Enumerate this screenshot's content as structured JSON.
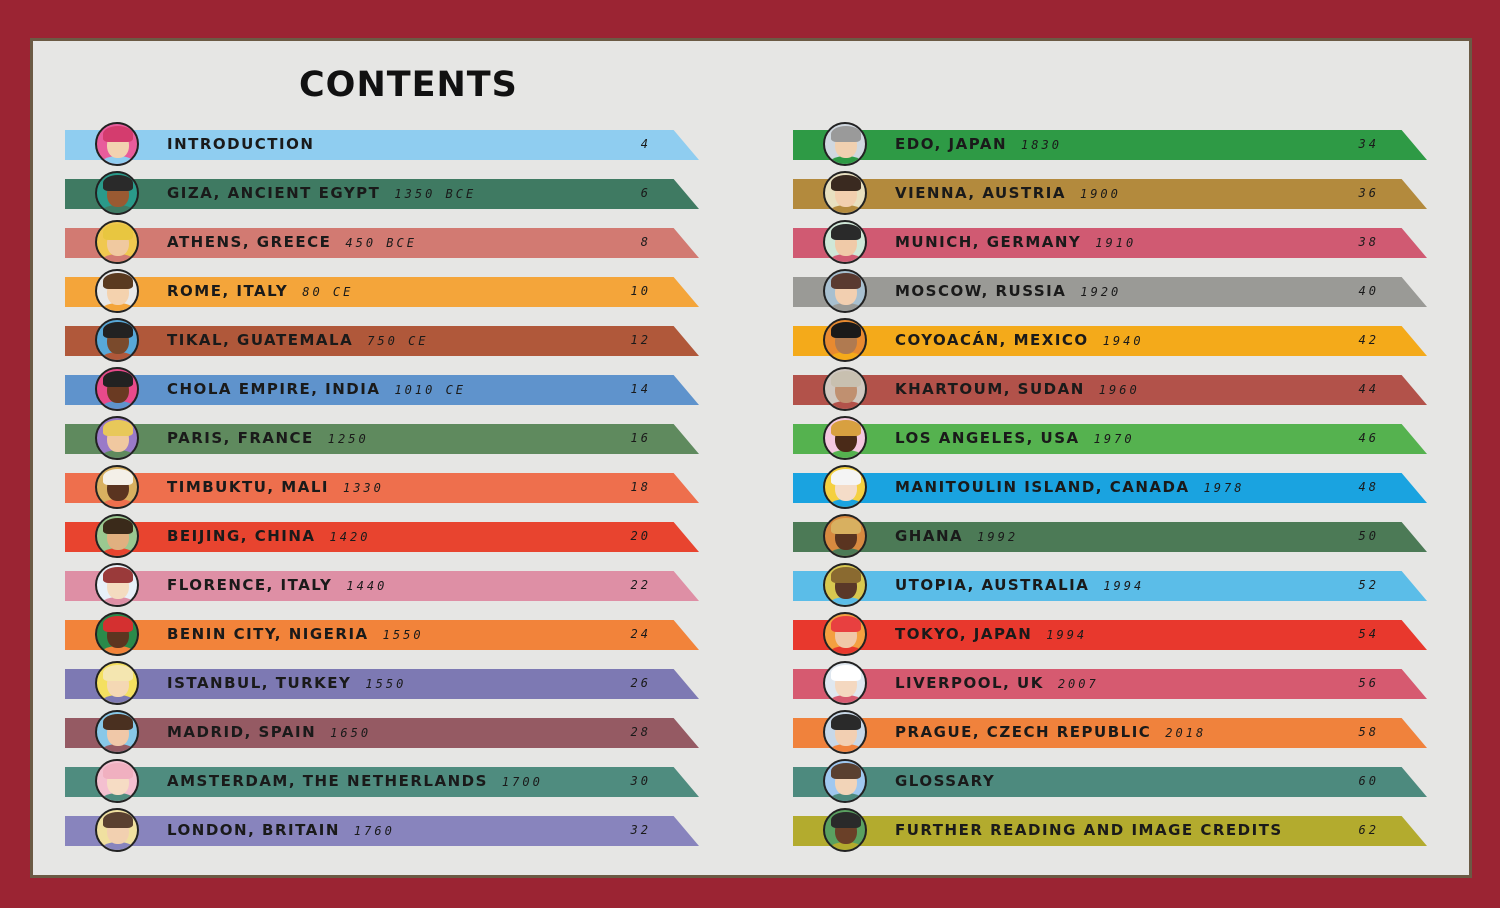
{
  "title": "CONTENTS",
  "left": [
    {
      "label": "INTRODUCTION",
      "year": "",
      "page": "4",
      "color": "#8fcdf0"
    },
    {
      "label": "GIZA, ANCIENT EGYPT",
      "year": "1350 BCE",
      "page": "6",
      "color": "#3f7a62"
    },
    {
      "label": "ATHENS, GREECE",
      "year": "450 BCE",
      "page": "8",
      "color": "#d27a72"
    },
    {
      "label": "ROME, ITALY",
      "year": "80 CE",
      "page": "10",
      "color": "#f4a53a"
    },
    {
      "label": "TIKAL, GUATEMALA",
      "year": "750 CE",
      "page": "12",
      "color": "#b0583a"
    },
    {
      "label": "CHOLA EMPIRE, INDIA",
      "year": "1010 CE",
      "page": "14",
      "color": "#5f93cc"
    },
    {
      "label": "PARIS, FRANCE",
      "year": "1250",
      "page": "16",
      "color": "#5f8a5e"
    },
    {
      "label": "TIMBUKTU, MALI",
      "year": "1330",
      "page": "18",
      "color": "#ee6f4d"
    },
    {
      "label": "BEIJING, CHINA",
      "year": "1420",
      "page": "20",
      "color": "#e8442f"
    },
    {
      "label": "FLORENCE, ITALY",
      "year": "1440",
      "page": "22",
      "color": "#de8fa5"
    },
    {
      "label": "BENIN CITY, NIGERIA",
      "year": "1550",
      "page": "24",
      "color": "#f2833a"
    },
    {
      "label": "ISTANBUL, TURKEY",
      "year": "1550",
      "page": "26",
      "color": "#7d79b3"
    },
    {
      "label": "MADRID, SPAIN",
      "year": "1650",
      "page": "28",
      "color": "#955a63"
    },
    {
      "label": "AMSTERDAM, THE NETHERLANDS",
      "year": "1700",
      "page": "30",
      "color": "#4f8c7f"
    },
    {
      "label": "LONDON, BRITAIN",
      "year": "1760",
      "page": "32",
      "color": "#8884bd"
    }
  ],
  "right": [
    {
      "label": "EDO, JAPAN",
      "year": "1830",
      "page": "34",
      "color": "#2e9a45"
    },
    {
      "label": "VIENNA, AUSTRIA",
      "year": "1900",
      "page": "36",
      "color": "#b38a3d"
    },
    {
      "label": "MUNICH, GERMANY",
      "year": "1910",
      "page": "38",
      "color": "#d05a72"
    },
    {
      "label": "MOSCOW, RUSSIA",
      "year": "1920",
      "page": "40",
      "color": "#9a9a96"
    },
    {
      "label": "COYOACÁN, MEXICO",
      "year": "1940",
      "page": "42",
      "color": "#f4aa1a"
    },
    {
      "label": "KHARTOUM, SUDAN",
      "year": "1960",
      "page": "44",
      "color": "#b2524a"
    },
    {
      "label": "LOS ANGELES, USA",
      "year": "1970",
      "page": "46",
      "color": "#55b24f"
    },
    {
      "label": "MANITOULIN ISLAND, CANADA",
      "year": "1978",
      "page": "48",
      "color": "#1aa3e0"
    },
    {
      "label": "GHANA",
      "year": "1992",
      "page": "50",
      "color": "#4c7a56"
    },
    {
      "label": "UTOPIA, AUSTRALIA",
      "year": "1994",
      "page": "52",
      "color": "#5bbde8"
    },
    {
      "label": "TOKYO, JAPAN",
      "year": "1994",
      "page": "54",
      "color": "#e8382d"
    },
    {
      "label": "LIVERPOOL, UK",
      "year": "2007",
      "page": "56",
      "color": "#d65a70"
    },
    {
      "label": "PRAGUE, CZECH REPUBLIC",
      "year": "2018",
      "page": "58",
      "color": "#f0823c"
    },
    {
      "label": "GLOSSARY",
      "year": "",
      "page": "60",
      "color": "#4d8a7e"
    },
    {
      "label": "FURTHER READING AND IMAGE CREDITS",
      "year": "",
      "page": "62",
      "color": "#b3ab2e"
    }
  ],
  "icons": {
    "left": [
      "paintbrush-cup-icon",
      "pharaoh-portrait-icon",
      "greek-helmet-portrait-icon",
      "roman-portrait-icon",
      "maya-portrait-icon",
      "indian-portrait-icon",
      "french-king-portrait-icon",
      "turban-portrait-icon",
      "chinese-portrait-icon",
      "florentine-portrait-icon",
      "benin-portrait-icon",
      "ottoman-portrait-icon",
      "spanish-portrait-icon",
      "dutch-portrait-icon",
      "british-portrait-icon"
    ],
    "right": [
      "japanese-portrait-icon",
      "viennese-portrait-icon",
      "german-portrait-icon",
      "russian-portrait-icon",
      "mexican-portrait-icon",
      "sudanese-portrait-icon",
      "american-portrait-icon",
      "canadian-portrait-icon",
      "ghanaian-portrait-icon",
      "australian-portrait-icon",
      "japanese-artist-portrait-icon",
      "liverpool-portrait-icon",
      "czech-portrait-icon",
      "glossary-portrait-icon",
      "reader-portrait-icon"
    ]
  },
  "portrait_colors": {
    "skin": [
      "#f2d2b0",
      "#9a5a32",
      "#f0c9a0",
      "#f4d2ae",
      "#7a4a2c",
      "#6a3a22",
      "#f0c8a0",
      "#5a3420",
      "#e0b080",
      "#f4dcc0",
      "#5c3520",
      "#f4d8b4",
      "#f0c8a8",
      "#f6dcc4",
      "#f2d0b0",
      "#f0d0b0",
      "#f2cfae",
      "#f0caa8",
      "#f2cfb0",
      "#b07a50",
      "#c09070",
      "#4a2a18",
      "#f4dcc8",
      "#5a3420",
      "#5a3828",
      "#f0c8a8",
      "#f4d8c0",
      "#f2cfb2",
      "#f2d4b8",
      "#6a4028"
    ],
    "hair": [
      "#d43c6e",
      "#2a2a2a",
      "#e8c640",
      "#5a3a20",
      "#222222",
      "#222222",
      "#e8c85a",
      "#f4f0e8",
      "#3a2a1a",
      "#9a3a3a",
      "#d43030",
      "#f4e6b0",
      "#4a3020",
      "#f0b0c0",
      "#5a4030",
      "#9a9a9a",
      "#3a2a20",
      "#2a2a2a",
      "#5a3a30",
      "#1a1a1a",
      "#c8c0b0",
      "#d8a040",
      "#f4f4f4",
      "#d8b060",
      "#8a6a30",
      "#e84040",
      "#ffffff",
      "#2a2a2a",
      "#5a4030",
      "#2a2a2a"
    ],
    "background": [
      "#e85c9c",
      "#2a9a8a",
      "#f0c850",
      "#e8e8e8",
      "#58a8d8",
      "#e84a8a",
      "#9a7ac8",
      "#d8b060",
      "#9ac890",
      "#e8f0f8",
      "#2a8a4a",
      "#f4e060",
      "#88c8e8",
      "#f4c0d0",
      "#f0e0a0",
      "#d0d8e0",
      "#e8e0c0",
      "#d0e8d8",
      "#a8c0d0",
      "#e88a30",
      "#d0c8c0",
      "#f4c8e0",
      "#f4d040",
      "#d88a40",
      "#d8c850",
      "#f4a040",
      "#e0e8f0",
      "#c8d8e8",
      "#a0c8f0",
      "#5aa060"
    ]
  }
}
